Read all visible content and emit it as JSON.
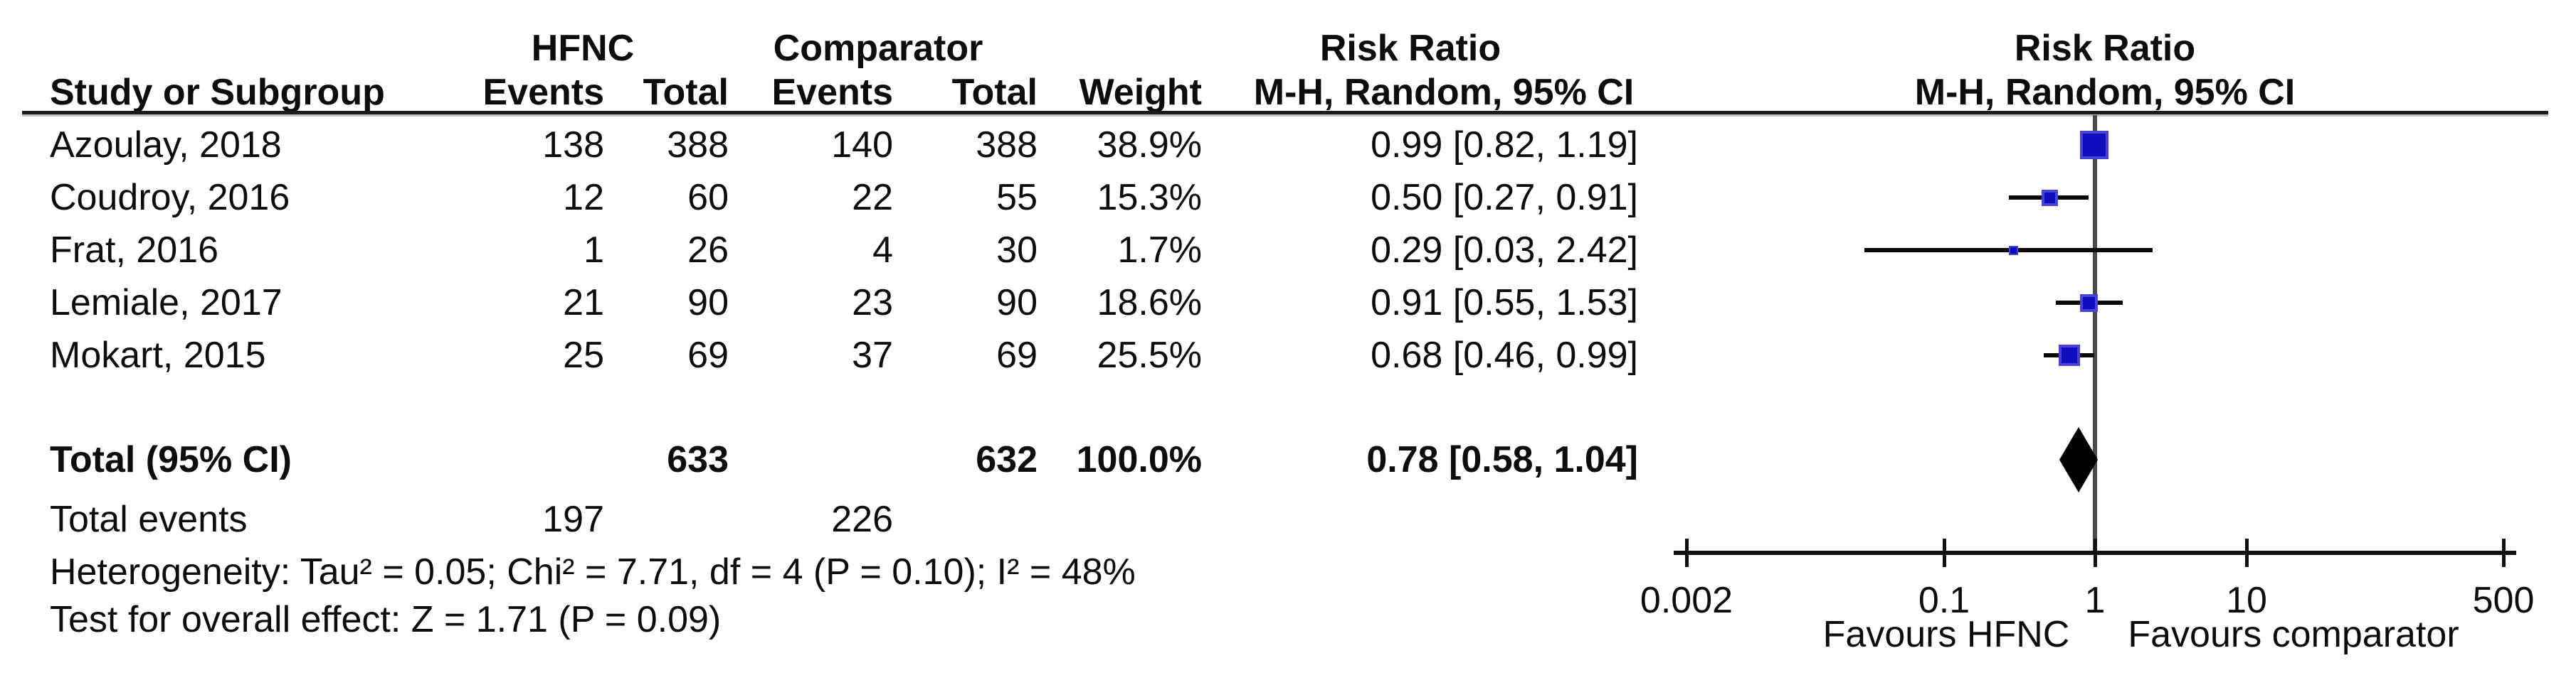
{
  "table": {
    "group_headers": {
      "hfnc": "HFNC",
      "comparator": "Comparator",
      "risk_ratio_text_col": "Risk Ratio",
      "risk_ratio_plot_col": "Risk Ratio"
    },
    "col_headers": {
      "study": "Study or Subgroup",
      "events_hfnc": "Events",
      "total_hfnc": "Total",
      "events_comparator": "Events",
      "total_comparator": "Total",
      "weight": "Weight",
      "mh_text_col": "M-H, Random, 95% CI",
      "mh_plot_col": "M-H, Random, 95% CI"
    },
    "rows": [
      {
        "study": "Azoulay, 2018",
        "e1": "138",
        "t1": "388",
        "e2": "140",
        "t2": "388",
        "weight": "38.9%",
        "rr": "0.99 [0.82, 1.19]"
      },
      {
        "study": "Coudroy, 2016",
        "e1": "12",
        "t1": "60",
        "e2": "22",
        "t2": "55",
        "weight": "15.3%",
        "rr": "0.50 [0.27, 0.91]"
      },
      {
        "study": "Frat, 2016",
        "e1": "1",
        "t1": "26",
        "e2": "4",
        "t2": "30",
        "weight": "1.7%",
        "rr": "0.29 [0.03, 2.42]"
      },
      {
        "study": "Lemiale, 2017",
        "e1": "21",
        "t1": "90",
        "e2": "23",
        "t2": "90",
        "weight": "18.6%",
        "rr": "0.91 [0.55, 1.53]"
      },
      {
        "study": "Mokart, 2015",
        "e1": "25",
        "t1": "69",
        "e2": "37",
        "t2": "69",
        "weight": "25.5%",
        "rr": "0.68 [0.46, 0.99]"
      }
    ],
    "total_row": {
      "label": "Total (95% CI)",
      "t1": "633",
      "t2": "632",
      "weight": "100.0%",
      "rr": "0.78 [0.58, 1.04]"
    },
    "total_events": {
      "label": "Total events",
      "e1": "197",
      "e2": "226"
    },
    "heterogeneity": "Heterogeneity: Tau² = 0.05; Chi² = 7.71, df = 4 (P = 0.10); I² = 48%",
    "overall_effect": "Test for overall effect: Z = 1.71 (P = 0.09)"
  },
  "axis": {
    "tick_labels": [
      "0.002",
      "0.1",
      "1",
      "10",
      "500"
    ],
    "favours_left": "Favours HFNC",
    "favours_right": "Favours comparator"
  },
  "chart_data": {
    "type": "forest",
    "effect_measure": "Risk Ratio",
    "method": "M-H, Random, 95% CI",
    "x_scale": "log",
    "x_range": [
      0.002,
      500
    ],
    "x_ticks": [
      0.002,
      0.1,
      1,
      10,
      500
    ],
    "null_line": 1,
    "studies": [
      {
        "name": "Azoulay, 2018",
        "events_hfnc": 138,
        "total_hfnc": 388,
        "events_comp": 140,
        "total_comp": 388,
        "weight_pct": 38.9,
        "rr": 0.99,
        "ci_low": 0.82,
        "ci_high": 1.19
      },
      {
        "name": "Coudroy, 2016",
        "events_hfnc": 12,
        "total_hfnc": 60,
        "events_comp": 22,
        "total_comp": 55,
        "weight_pct": 15.3,
        "rr": 0.5,
        "ci_low": 0.27,
        "ci_high": 0.91
      },
      {
        "name": "Frat, 2016",
        "events_hfnc": 1,
        "total_hfnc": 26,
        "events_comp": 4,
        "total_comp": 30,
        "weight_pct": 1.7,
        "rr": 0.29,
        "ci_low": 0.03,
        "ci_high": 2.42
      },
      {
        "name": "Lemiale, 2017",
        "events_hfnc": 21,
        "total_hfnc": 90,
        "events_comp": 23,
        "total_comp": 90,
        "weight_pct": 18.6,
        "rr": 0.91,
        "ci_low": 0.55,
        "ci_high": 1.53
      },
      {
        "name": "Mokart, 2015",
        "events_hfnc": 25,
        "total_hfnc": 69,
        "events_comp": 37,
        "total_comp": 69,
        "weight_pct": 25.5,
        "rr": 0.68,
        "ci_low": 0.46,
        "ci_high": 0.99
      }
    ],
    "total": {
      "rr": 0.78,
      "ci_low": 0.58,
      "ci_high": 1.04,
      "total_hfnc": 633,
      "total_comp": 632,
      "events_hfnc": 197,
      "events_comp": 226,
      "weight_pct": 100.0
    },
    "heterogeneity": {
      "tau2": 0.05,
      "chi2": 7.71,
      "df": 4,
      "p": 0.1,
      "i2_pct": 48
    },
    "overall_effect": {
      "z": 1.71,
      "p": 0.09
    }
  },
  "colors": {
    "square_fill": "#0f0dc0",
    "square_border": "#4743d9",
    "diamond": "#000000",
    "ci_line": "#0a0a0a",
    "center_line": "#4a4a4a",
    "axis": "#111111",
    "text": "#0d0d0d",
    "background": "#ffffff"
  }
}
